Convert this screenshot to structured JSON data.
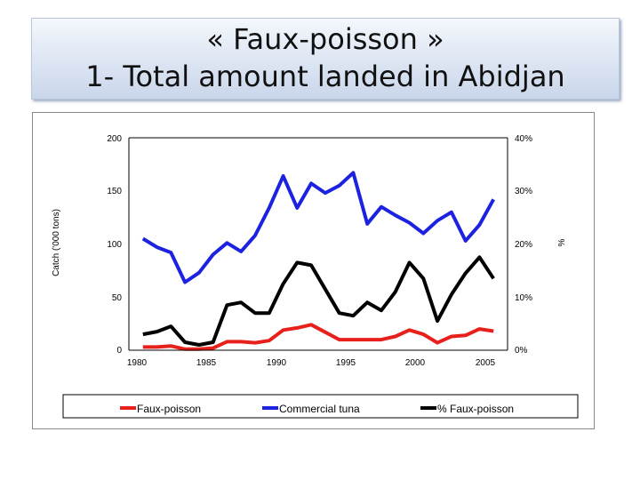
{
  "title": {
    "line1": "« Faux-poisson »",
    "line2": "1- Total amount landed in Abidjan"
  },
  "chart_data": {
    "type": "line",
    "ylabel": "Catch ('000 tons)",
    "y2label": "%",
    "xlim": [
      1980,
      2007
    ],
    "ylim": [
      0,
      200
    ],
    "y2lim": [
      0,
      40
    ],
    "x_ticks": [
      "1980",
      "1985",
      "1990",
      "1995",
      "2000",
      "2005"
    ],
    "y_ticks": [
      "0",
      "50",
      "100",
      "150",
      "200"
    ],
    "y2_ticks": [
      "0%",
      "10%",
      "20%",
      "30%",
      "40%"
    ],
    "grid": false,
    "legend_position": "bottom",
    "x": [
      1981,
      1982,
      1983,
      1984,
      1985,
      1986,
      1987,
      1988,
      1989,
      1990,
      1991,
      1992,
      1993,
      1994,
      1995,
      1996,
      1997,
      1998,
      1999,
      2000,
      2001,
      2002,
      2003,
      2004,
      2005,
      2006
    ],
    "series": [
      {
        "name": "Faux-poisson",
        "axis": "left",
        "color": "#e8201c",
        "values": [
          3,
          3,
          4,
          1,
          1,
          2,
          8,
          8,
          7,
          9,
          19,
          21,
          24,
          17,
          10,
          10,
          10,
          10,
          13,
          19,
          15,
          7,
          13,
          14,
          20,
          18
        ]
      },
      {
        "name": "Commercial tuna",
        "axis": "left",
        "color": "#1c22e0",
        "values": [
          105,
          97,
          92,
          64,
          73,
          90,
          101,
          93,
          108,
          134,
          164,
          134,
          157,
          148,
          155,
          167,
          119,
          135,
          127,
          120,
          110,
          122,
          130,
          103,
          118,
          142
        ]
      },
      {
        "name": "% Faux-poisson",
        "axis": "right",
        "color": "#000000",
        "values": [
          3,
          3.5,
          4.5,
          1.5,
          1,
          1.5,
          8.5,
          9,
          7,
          7,
          12.5,
          16.5,
          16,
          11.5,
          7,
          6.5,
          9,
          7.5,
          11,
          16.5,
          13.5,
          5.5,
          10.5,
          14.5,
          17.5,
          13.5
        ]
      }
    ]
  }
}
